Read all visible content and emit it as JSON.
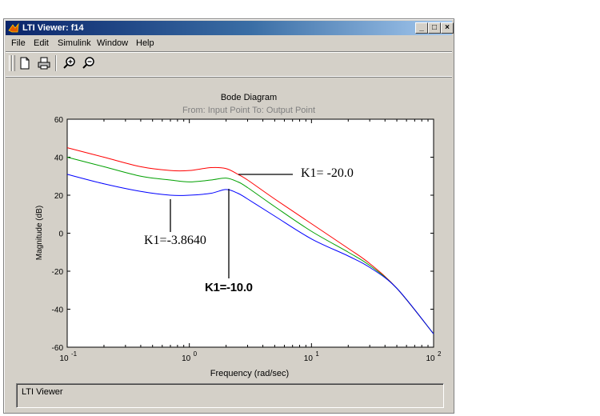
{
  "window": {
    "title": "LTI Viewer: f14",
    "minimize_label": "_",
    "maximize_label": "□",
    "close_label": "×"
  },
  "menu": [
    {
      "label": "File"
    },
    {
      "label": "Edit"
    },
    {
      "label": "Simulink"
    },
    {
      "label": "Window"
    },
    {
      "label": "Help"
    }
  ],
  "toolbar": {
    "icons": [
      "new-document-icon",
      "print-icon",
      "zoom-in-icon",
      "zoom-out-icon"
    ]
  },
  "plot": {
    "title": "Bode Diagram",
    "subtitle": "From: Input Point  To: Output Point",
    "xlabel": "Frequency  (rad/sec)",
    "ylabel": "Magnitude (dB)"
  },
  "annotations": {
    "k1_minus_20": "K1= -20.0",
    "k1_minus_3_864": "K1=-3.8640",
    "k1_minus_10": "K1=-10.0"
  },
  "status": {
    "text": "LTI Viewer"
  },
  "colors": {
    "series_k1_minus_20": "#ff0000",
    "series_k1_minus_10": "#00a000",
    "series_k1_minus_3_864": "#0000ff",
    "titlebar_start": "#0a246a",
    "window_bg": "#d4d0c8"
  },
  "chart_data": {
    "type": "line",
    "title": "Bode Diagram",
    "subtitle": "From: Input Point  To: Output Point",
    "xlabel": "Frequency  (rad/sec)",
    "ylabel": "Magnitude (dB)",
    "xscale": "log",
    "xlim": [
      0.1,
      100
    ],
    "ylim": [
      -60,
      60
    ],
    "xticks": [
      0.1,
      1,
      10,
      100
    ],
    "xtick_labels": [
      "10-1",
      "100",
      "101",
      "102"
    ],
    "yticks": [
      -60,
      -40,
      -20,
      0,
      20,
      40,
      60
    ],
    "grid": false,
    "series": [
      {
        "name": "K1= -20.0",
        "color": "#ff0000",
        "x": [
          0.1,
          0.2,
          0.4,
          0.7,
          1.0,
          1.5,
          2.0,
          2.5,
          3,
          5,
          10,
          20,
          30,
          50,
          100
        ],
        "y": [
          45,
          40,
          35,
          33,
          33,
          34.5,
          34,
          31,
          28,
          18,
          5,
          -8,
          -16,
          -29,
          -53
        ]
      },
      {
        "name": "K1=-10.0",
        "color": "#00a000",
        "x": [
          0.1,
          0.2,
          0.4,
          0.7,
          1.0,
          1.5,
          2.0,
          2.5,
          3,
          5,
          10,
          20,
          30,
          50,
          100
        ],
        "y": [
          40,
          35,
          30,
          28,
          27,
          28,
          29,
          27,
          24,
          14,
          1,
          -10,
          -17,
          -29,
          -53
        ]
      },
      {
        "name": "K1=-3.8640",
        "color": "#0000ff",
        "x": [
          0.1,
          0.2,
          0.4,
          0.7,
          1.0,
          1.5,
          2.0,
          2.5,
          3,
          5,
          10,
          20,
          30,
          50,
          100
        ],
        "y": [
          31,
          26,
          22,
          20,
          20,
          21,
          23,
          21,
          18,
          9,
          -3,
          -12,
          -18,
          -29,
          -53
        ]
      }
    ]
  }
}
